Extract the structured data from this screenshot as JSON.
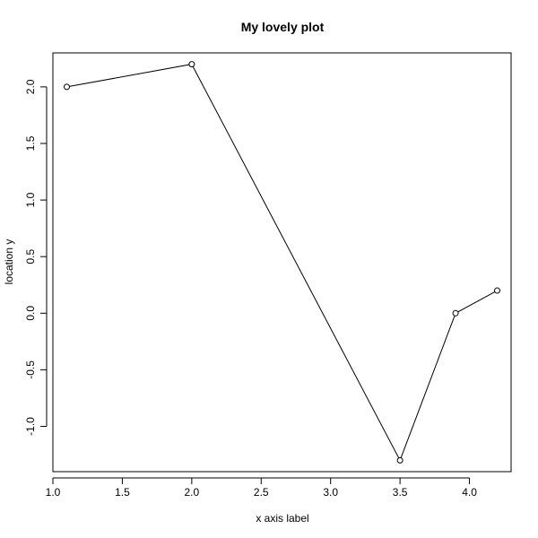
{
  "chart_data": {
    "type": "line",
    "title": "My lovely plot",
    "xlabel": "x axis label",
    "ylabel": "location y",
    "xlim": [
      1.0,
      4.3
    ],
    "ylim": [
      -1.4,
      2.3
    ],
    "x_ticks": [
      "1.0",
      "1.5",
      "2.0",
      "2.5",
      "3.0",
      "3.5",
      "4.0"
    ],
    "y_ticks": [
      "-1.0",
      "-0.5",
      "0.0",
      "0.5",
      "1.0",
      "1.5",
      "2.0"
    ],
    "grid": false,
    "legend": "none",
    "series": [
      {
        "x": [
          1.1,
          2.0,
          3.5,
          3.9,
          4.2
        ],
        "y": [
          2.0,
          2.2,
          -1.3,
          0.0,
          0.2
        ],
        "color": "#000000",
        "marker": "open-circle"
      }
    ]
  }
}
